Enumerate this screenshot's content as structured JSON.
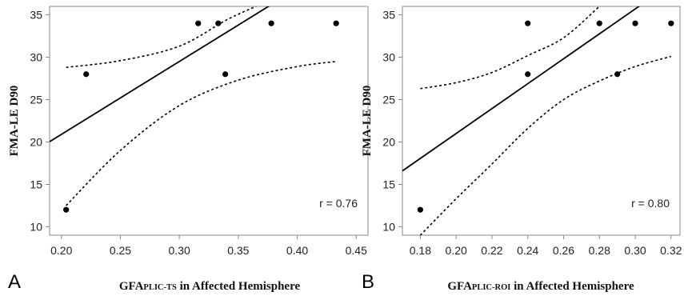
{
  "chart_data": [
    {
      "type": "scatter",
      "panel_label": "A",
      "xlabel": {
        "prefix": "GFA",
        "subscript": "PLIC-TS",
        "suffix": " in Affected Hemisphere"
      },
      "ylabel": "FMA-LE D90",
      "xlim": [
        0.19,
        0.46
      ],
      "ylim": [
        9,
        36
      ],
      "x_ticks": [
        0.2,
        0.25,
        0.3,
        0.35,
        0.4,
        0.45
      ],
      "x_tick_labels": [
        "0.20",
        "0.25",
        "0.30",
        "0.35",
        "0.40",
        "0.45"
      ],
      "y_ticks": [
        10,
        15,
        20,
        25,
        30,
        35
      ],
      "y_tick_labels": [
        "10",
        "15",
        "20",
        "25",
        "30",
        "35"
      ],
      "points": [
        {
          "x": 0.204,
          "y": 12
        },
        {
          "x": 0.221,
          "y": 28
        },
        {
          "x": 0.316,
          "y": 34
        },
        {
          "x": 0.333,
          "y": 34
        },
        {
          "x": 0.339,
          "y": 28
        },
        {
          "x": 0.378,
          "y": 34
        },
        {
          "x": 0.433,
          "y": 34
        }
      ],
      "regression": {
        "slope": 86.0,
        "intercept": 3.7
      },
      "ci_upper": [
        [
          0.204,
          28.8
        ],
        [
          0.25,
          29.6
        ],
        [
          0.3,
          31.3
        ],
        [
          0.34,
          34.4
        ],
        [
          0.365,
          36
        ]
      ],
      "ci_lower": [
        [
          0.204,
          12.5
        ],
        [
          0.25,
          19.0
        ],
        [
          0.3,
          24.3
        ],
        [
          0.35,
          27.3
        ],
        [
          0.4,
          28.9
        ],
        [
          0.433,
          29.5
        ]
      ],
      "r_text": "r = 0.76",
      "grid": false
    },
    {
      "type": "scatter",
      "panel_label": "B",
      "xlabel": {
        "prefix": "GFA",
        "subscript": "PLIC-ROI",
        "suffix": " in Affected Hemisphere"
      },
      "ylabel": "FMA-LE D90",
      "xlim": [
        0.17,
        0.325
      ],
      "ylim": [
        9,
        36
      ],
      "x_ticks": [
        0.18,
        0.2,
        0.22,
        0.24,
        0.26,
        0.28,
        0.3,
        0.32
      ],
      "x_tick_labels": [
        "0.18",
        "0.20",
        "0.22",
        "0.24",
        "0.26",
        "0.28",
        "0.30",
        "0.32"
      ],
      "y_ticks": [
        10,
        15,
        20,
        25,
        30,
        35
      ],
      "y_tick_labels": [
        "10",
        "15",
        "20",
        "25",
        "30",
        "35"
      ],
      "points": [
        {
          "x": 0.18,
          "y": 12
        },
        {
          "x": 0.24,
          "y": 34
        },
        {
          "x": 0.24,
          "y": 28
        },
        {
          "x": 0.28,
          "y": 34
        },
        {
          "x": 0.29,
          "y": 28
        },
        {
          "x": 0.3,
          "y": 34
        },
        {
          "x": 0.32,
          "y": 34
        }
      ],
      "regression": {
        "slope": 147.0,
        "intercept": -8.4
      },
      "ci_upper": [
        [
          0.18,
          26.3
        ],
        [
          0.2,
          27.0
        ],
        [
          0.22,
          28.2
        ],
        [
          0.24,
          30.2
        ],
        [
          0.26,
          32.3
        ],
        [
          0.28,
          36
        ]
      ],
      "ci_lower": [
        [
          0.18,
          9.0
        ],
        [
          0.2,
          13.3
        ],
        [
          0.22,
          17.4
        ],
        [
          0.24,
          21.6
        ],
        [
          0.26,
          25.0
        ],
        [
          0.28,
          27.2
        ],
        [
          0.3,
          28.9
        ],
        [
          0.32,
          30.1
        ]
      ],
      "r_text": "r = 0.80",
      "grid": false
    }
  ],
  "colors": {
    "axis": "#888888",
    "point": "#000000",
    "line": "#000000"
  }
}
